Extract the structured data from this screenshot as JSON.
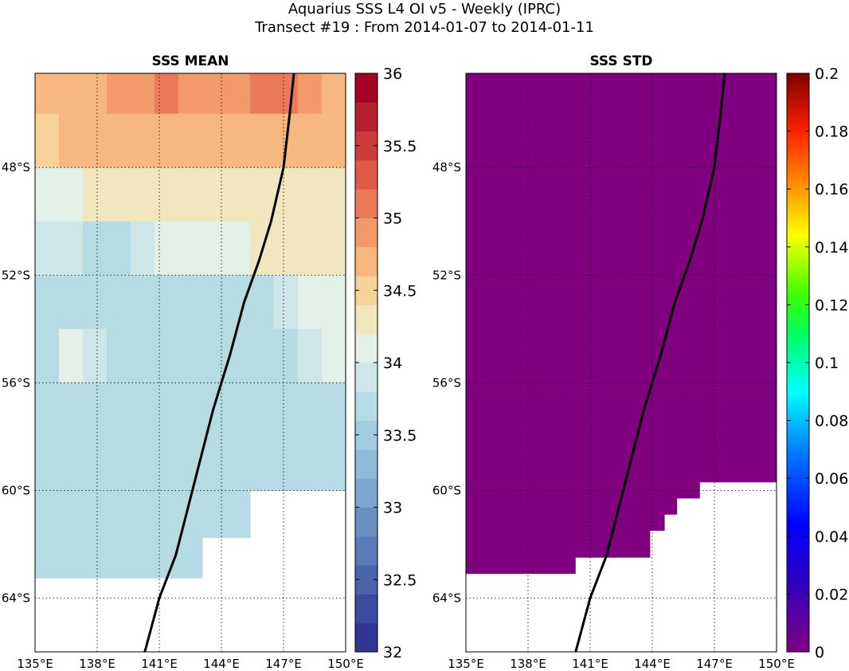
{
  "figure": {
    "title_line1": "Aquarius SSS L4 OI v5 - Weekly (IPRC)",
    "title_line2": "Transect #19 : From 2014-01-07 to 2014-01-11"
  },
  "chart_data": [
    {
      "type": "heatmap",
      "title": "SSS MEAN",
      "xlabel": "",
      "ylabel": "",
      "xlim": [
        135,
        150
      ],
      "ylim": [
        -66,
        -44.5
      ],
      "x_ticks": [
        "135°E",
        "138°E",
        "141°E",
        "144°E",
        "147°E",
        "150°E"
      ],
      "y_ticks": [
        "48°S",
        "52°S",
        "56°S",
        "60°S",
        "64°S"
      ],
      "grid": true,
      "colorbar": {
        "range": [
          32,
          36
        ],
        "ticks": [
          "32",
          "32.5",
          "33",
          "33.5",
          "34",
          "34.5",
          "35",
          "35.5",
          "36"
        ],
        "colormap": "RdYlBu_r, 20 discrete levels"
      },
      "field_rows": [
        {
          "lat": -45,
          "values": [
            34.7,
            34.7,
            34.8,
            34.9,
            34.9,
            35.0,
            34.9,
            34.9,
            34.9,
            35.0,
            35.0,
            34.9,
            34.8
          ]
        },
        {
          "lat": -47,
          "values": [
            34.5,
            34.6,
            34.7,
            34.7,
            34.6,
            34.7,
            34.6,
            34.7,
            34.6,
            34.7,
            34.7,
            34.6,
            34.6
          ]
        },
        {
          "lat": -49,
          "values": [
            34.0,
            34.1,
            34.2,
            34.4,
            34.4,
            34.4,
            34.4,
            34.3,
            34.4,
            34.3,
            34.3,
            34.4,
            34.4
          ]
        },
        {
          "lat": -51,
          "values": [
            33.9,
            33.9,
            33.8,
            33.8,
            33.9,
            34.0,
            34.1,
            34.1,
            34.1,
            34.2,
            34.3,
            34.3,
            34.3
          ]
        },
        {
          "lat": -53,
          "values": [
            33.7,
            33.7,
            33.6,
            33.6,
            33.7,
            33.7,
            33.8,
            33.8,
            33.8,
            33.8,
            33.9,
            34.0,
            34.1
          ]
        },
        {
          "lat": -55,
          "values": [
            33.8,
            34.0,
            33.9,
            33.7,
            33.8,
            33.8,
            33.7,
            33.7,
            33.7,
            33.8,
            33.8,
            33.9,
            34.0
          ]
        },
        {
          "lat": -57,
          "values": [
            33.6,
            33.7,
            33.7,
            33.7,
            33.8,
            33.7,
            33.6,
            33.6,
            33.6,
            33.6,
            33.7,
            33.7,
            33.7
          ]
        },
        {
          "lat": -59,
          "values": [
            33.6,
            33.7,
            33.8,
            33.8,
            33.7,
            33.7,
            33.6,
            33.6,
            33.6,
            33.6,
            33.6,
            33.6,
            33.6
          ]
        },
        {
          "lat": -61,
          "values": [
            33.6,
            33.6,
            33.6,
            33.6,
            33.6,
            33.6,
            33.6,
            33.6,
            33.6,
            null,
            null,
            null,
            null
          ]
        },
        {
          "lat": -62.5,
          "values": [
            33.6,
            33.6,
            33.6,
            33.6,
            33.6,
            33.6,
            33.6,
            null,
            null,
            null,
            null,
            null,
            null
          ]
        }
      ],
      "transect": {
        "lon": [
          140.3,
          141.0,
          141.8,
          142.6,
          143.6,
          144.4,
          145.1,
          145.8,
          146.4,
          147.0,
          147.3,
          147.5
        ],
        "lat": [
          -66,
          -64,
          -62.4,
          -60,
          -57,
          -55,
          -53,
          -51.5,
          -50,
          -48,
          -46,
          -44.5
        ]
      }
    },
    {
      "type": "heatmap",
      "title": "SSS STD",
      "xlabel": "",
      "ylabel": "",
      "xlim": [
        135,
        150
      ],
      "ylim": [
        -66,
        -44.5
      ],
      "x_ticks": [
        "135°E",
        "138°E",
        "141°E",
        "144°E",
        "147°E",
        "150°E"
      ],
      "y_ticks": [
        "48°S",
        "52°S",
        "56°S",
        "60°S",
        "64°S"
      ],
      "grid": true,
      "uniform_value": 0,
      "fill_color": "#800080",
      "colorbar": {
        "range": [
          0,
          0.2
        ],
        "ticks": [
          "0",
          "0.02",
          "0.04",
          "0.06",
          "0.08",
          "0.1",
          "0.12",
          "0.14",
          "0.16",
          "0.18",
          "0.2"
        ],
        "colormap": "jet"
      },
      "transect": {
        "lon": [
          140.3,
          141.0,
          141.8,
          142.6,
          143.6,
          144.4,
          145.1,
          145.8,
          146.4,
          147.0,
          147.3,
          147.5
        ],
        "lat": [
          -66,
          -64,
          -62.4,
          -60,
          -57,
          -55,
          -53,
          -51.5,
          -50,
          -48,
          -46,
          -44.5
        ]
      }
    }
  ]
}
